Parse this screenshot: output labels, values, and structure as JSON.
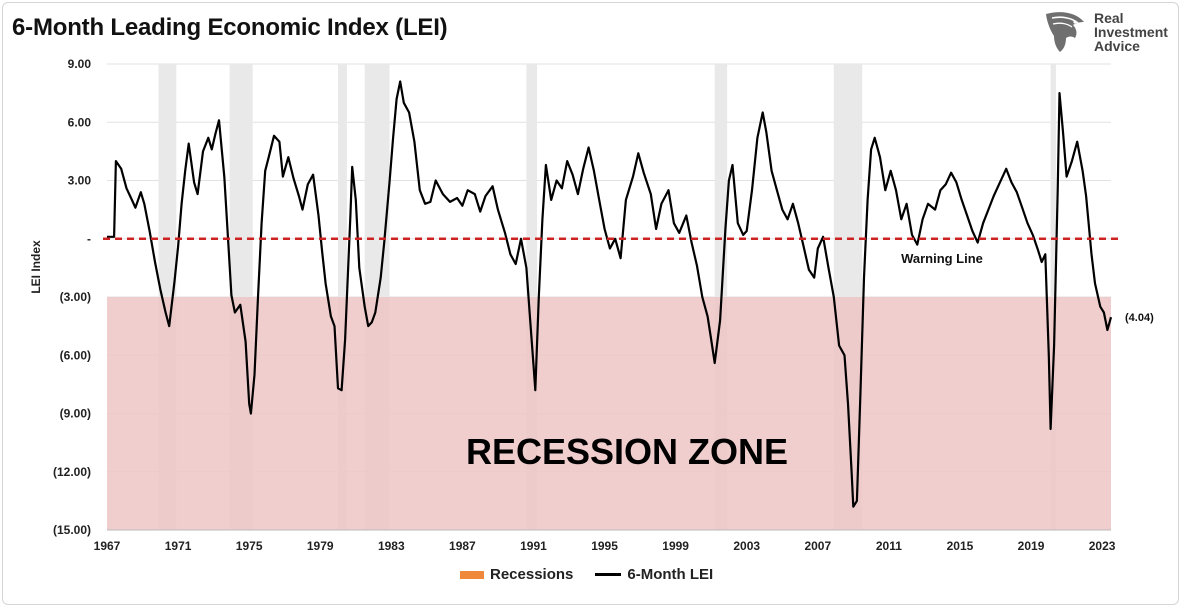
{
  "title": "6-Month Leading Economic Index (LEI)",
  "logo": {
    "lines": [
      "Real",
      "Investment",
      "Advice"
    ],
    "icon": "eagle-head-icon"
  },
  "chart_data": {
    "type": "line",
    "title": "6-Month Leading Economic Index (LEI)",
    "xlabel": "",
    "ylabel": "LEI Index",
    "xlim": [
      1967,
      2023.5
    ],
    "ylim": [
      -15,
      9
    ],
    "x_ticks": [
      "1967",
      "1971",
      "1975",
      "1979",
      "1983",
      "1987",
      "1991",
      "1995",
      "1999",
      "2003",
      "2007",
      "2011",
      "2015",
      "2019",
      "2023"
    ],
    "y_ticks": [
      {
        "value": 9,
        "label": "9.00"
      },
      {
        "value": 6,
        "label": "6.00"
      },
      {
        "value": 3,
        "label": "3.00"
      },
      {
        "value": 0,
        "label": "-"
      },
      {
        "value": -3,
        "label": "(3.00)"
      },
      {
        "value": -6,
        "label": "(6.00)"
      },
      {
        "value": -9,
        "label": "(9.00)"
      },
      {
        "value": -12,
        "label": "(12.00)"
      },
      {
        "value": -15,
        "label": "(15.00)"
      }
    ],
    "grid": "horizontal",
    "legend_position": "bottom",
    "recessions": [
      [
        1969.9,
        1970.9
      ],
      [
        1973.9,
        1975.2
      ],
      [
        1980.0,
        1980.5
      ],
      [
        1981.5,
        1982.9
      ],
      [
        1990.6,
        1991.2
      ],
      [
        2001.2,
        2001.9
      ],
      [
        2007.9,
        2009.5
      ],
      [
        2020.1,
        2020.4
      ]
    ],
    "warning_line": {
      "value": 0,
      "label": "Warning Line"
    },
    "recession_zone": {
      "range": [
        -15,
        -3
      ],
      "label": "RECESSION ZONE"
    },
    "end_label": "(4.04)",
    "colors": {
      "line": "#000000",
      "recession_band": "#e9e9e9",
      "zone": "#efc5c5",
      "warning": "#cc2222",
      "legend_recessions": "#f0883c"
    },
    "series": [
      {
        "name": "6-Month LEI",
        "points": [
          [
            1967.0,
            0.1
          ],
          [
            1967.4,
            0.1
          ],
          [
            1967.5,
            4.0
          ],
          [
            1967.8,
            3.6
          ],
          [
            1968.1,
            2.6
          ],
          [
            1968.4,
            2.0
          ],
          [
            1968.6,
            1.6
          ],
          [
            1968.9,
            2.4
          ],
          [
            1969.1,
            1.8
          ],
          [
            1969.4,
            0.4
          ],
          [
            1969.7,
            -1.2
          ],
          [
            1970.0,
            -2.6
          ],
          [
            1970.3,
            -3.8
          ],
          [
            1970.5,
            -4.5
          ],
          [
            1970.8,
            -2.2
          ],
          [
            1971.0,
            -0.4
          ],
          [
            1971.2,
            1.8
          ],
          [
            1971.4,
            3.5
          ],
          [
            1971.6,
            4.9
          ],
          [
            1971.9,
            2.9
          ],
          [
            1972.1,
            2.3
          ],
          [
            1972.4,
            4.5
          ],
          [
            1972.7,
            5.2
          ],
          [
            1972.9,
            4.6
          ],
          [
            1973.1,
            5.4
          ],
          [
            1973.3,
            6.1
          ],
          [
            1973.6,
            3.2
          ],
          [
            1973.8,
            0.2
          ],
          [
            1974.0,
            -2.9
          ],
          [
            1974.2,
            -3.8
          ],
          [
            1974.5,
            -3.4
          ],
          [
            1974.8,
            -5.3
          ],
          [
            1975.0,
            -8.5
          ],
          [
            1975.1,
            -9.0
          ],
          [
            1975.3,
            -7.0
          ],
          [
            1975.5,
            -3.0
          ],
          [
            1975.7,
            0.8
          ],
          [
            1975.9,
            3.5
          ],
          [
            1976.1,
            4.2
          ],
          [
            1976.4,
            5.3
          ],
          [
            1976.7,
            5.0
          ],
          [
            1976.9,
            3.2
          ],
          [
            1977.2,
            4.2
          ],
          [
            1977.5,
            3.1
          ],
          [
            1977.8,
            2.2
          ],
          [
            1978.0,
            1.5
          ],
          [
            1978.3,
            2.8
          ],
          [
            1978.6,
            3.3
          ],
          [
            1978.9,
            1.2
          ],
          [
            1979.1,
            -0.6
          ],
          [
            1979.3,
            -2.3
          ],
          [
            1979.6,
            -4.0
          ],
          [
            1979.8,
            -4.5
          ],
          [
            1980.0,
            -7.7
          ],
          [
            1980.2,
            -7.8
          ],
          [
            1980.4,
            -5.2
          ],
          [
            1980.7,
            1.2
          ],
          [
            1980.8,
            3.7
          ],
          [
            1981.0,
            2.0
          ],
          [
            1981.2,
            -1.5
          ],
          [
            1981.5,
            -3.5
          ],
          [
            1981.7,
            -4.5
          ],
          [
            1981.9,
            -4.3
          ],
          [
            1982.1,
            -3.8
          ],
          [
            1982.4,
            -2.0
          ],
          [
            1982.6,
            -0.2
          ],
          [
            1982.9,
            2.9
          ],
          [
            1983.1,
            5.2
          ],
          [
            1983.3,
            7.2
          ],
          [
            1983.5,
            8.1
          ],
          [
            1983.7,
            7.0
          ],
          [
            1984.0,
            6.5
          ],
          [
            1984.3,
            5.0
          ],
          [
            1984.6,
            2.5
          ],
          [
            1984.9,
            1.8
          ],
          [
            1985.2,
            1.9
          ],
          [
            1985.5,
            3.0
          ],
          [
            1985.9,
            2.3
          ],
          [
            1986.3,
            1.9
          ],
          [
            1986.7,
            2.1
          ],
          [
            1987.0,
            1.7
          ],
          [
            1987.3,
            2.5
          ],
          [
            1987.7,
            2.3
          ],
          [
            1988.0,
            1.4
          ],
          [
            1988.3,
            2.2
          ],
          [
            1988.7,
            2.7
          ],
          [
            1989.0,
            1.5
          ],
          [
            1989.4,
            0.3
          ],
          [
            1989.7,
            -0.8
          ],
          [
            1990.0,
            -1.3
          ],
          [
            1990.3,
            0.0
          ],
          [
            1990.6,
            -1.5
          ],
          [
            1990.8,
            -4.0
          ],
          [
            1991.0,
            -6.5
          ],
          [
            1991.1,
            -7.8
          ],
          [
            1991.3,
            -3.0
          ],
          [
            1991.5,
            1.0
          ],
          [
            1991.7,
            3.8
          ],
          [
            1992.0,
            2.0
          ],
          [
            1992.3,
            3.0
          ],
          [
            1992.6,
            2.6
          ],
          [
            1992.9,
            4.0
          ],
          [
            1993.2,
            3.3
          ],
          [
            1993.5,
            2.3
          ],
          [
            1993.8,
            3.6
          ],
          [
            1994.1,
            4.7
          ],
          [
            1994.4,
            3.5
          ],
          [
            1994.7,
            2.0
          ],
          [
            1995.0,
            0.5
          ],
          [
            1995.3,
            -0.5
          ],
          [
            1995.6,
            0.0
          ],
          [
            1995.9,
            -1.0
          ],
          [
            1996.2,
            2.0
          ],
          [
            1996.6,
            3.2
          ],
          [
            1996.9,
            4.4
          ],
          [
            1997.2,
            3.4
          ],
          [
            1997.6,
            2.3
          ],
          [
            1997.9,
            0.5
          ],
          [
            1998.2,
            1.8
          ],
          [
            1998.6,
            2.5
          ],
          [
            1998.9,
            0.8
          ],
          [
            1999.2,
            0.3
          ],
          [
            1999.6,
            1.2
          ],
          [
            1999.9,
            -0.2
          ],
          [
            2000.2,
            -1.4
          ],
          [
            2000.5,
            -3.0
          ],
          [
            2000.8,
            -4.0
          ],
          [
            2001.0,
            -5.2
          ],
          [
            2001.2,
            -6.4
          ],
          [
            2001.5,
            -4.2
          ],
          [
            2001.8,
            0.5
          ],
          [
            2002.0,
            3.0
          ],
          [
            2002.2,
            3.8
          ],
          [
            2002.5,
            0.8
          ],
          [
            2002.8,
            0.2
          ],
          [
            2003.0,
            0.4
          ],
          [
            2003.3,
            2.5
          ],
          [
            2003.6,
            5.2
          ],
          [
            2003.9,
            6.5
          ],
          [
            2004.1,
            5.5
          ],
          [
            2004.4,
            3.5
          ],
          [
            2004.7,
            2.5
          ],
          [
            2005.0,
            1.5
          ],
          [
            2005.3,
            1.0
          ],
          [
            2005.6,
            1.8
          ],
          [
            2005.9,
            0.8
          ],
          [
            2006.2,
            -0.4
          ],
          [
            2006.5,
            -1.6
          ],
          [
            2006.8,
            -2.0
          ],
          [
            2007.0,
            -0.5
          ],
          [
            2007.3,
            0.1
          ],
          [
            2007.6,
            -1.5
          ],
          [
            2007.9,
            -3.0
          ],
          [
            2008.2,
            -5.5
          ],
          [
            2008.5,
            -6.0
          ],
          [
            2008.7,
            -8.5
          ],
          [
            2008.9,
            -12.0
          ],
          [
            2009.0,
            -13.8
          ],
          [
            2009.2,
            -13.5
          ],
          [
            2009.4,
            -8.0
          ],
          [
            2009.6,
            -2.0
          ],
          [
            2009.8,
            2.0
          ],
          [
            2010.0,
            4.6
          ],
          [
            2010.2,
            5.2
          ],
          [
            2010.5,
            4.2
          ],
          [
            2010.8,
            2.5
          ],
          [
            2011.1,
            3.5
          ],
          [
            2011.4,
            2.5
          ],
          [
            2011.7,
            1.0
          ],
          [
            2012.0,
            1.8
          ],
          [
            2012.3,
            0.2
          ],
          [
            2012.6,
            -0.3
          ],
          [
            2012.9,
            1.0
          ],
          [
            2013.2,
            1.8
          ],
          [
            2013.6,
            1.5
          ],
          [
            2013.9,
            2.5
          ],
          [
            2014.2,
            2.8
          ],
          [
            2014.5,
            3.4
          ],
          [
            2014.8,
            2.9
          ],
          [
            2015.1,
            2.0
          ],
          [
            2015.4,
            1.2
          ],
          [
            2015.7,
            0.4
          ],
          [
            2016.0,
            -0.2
          ],
          [
            2016.3,
            0.8
          ],
          [
            2016.6,
            1.5
          ],
          [
            2016.9,
            2.2
          ],
          [
            2017.2,
            2.8
          ],
          [
            2017.6,
            3.6
          ],
          [
            2017.9,
            2.9
          ],
          [
            2018.2,
            2.4
          ],
          [
            2018.5,
            1.6
          ],
          [
            2018.8,
            0.8
          ],
          [
            2019.1,
            0.2
          ],
          [
            2019.4,
            -0.6
          ],
          [
            2019.6,
            -1.2
          ],
          [
            2019.8,
            -0.8
          ],
          [
            2020.0,
            -6.0
          ],
          [
            2020.1,
            -9.8
          ],
          [
            2020.3,
            -5.5
          ],
          [
            2020.5,
            2.5
          ],
          [
            2020.6,
            7.5
          ],
          [
            2020.8,
            5.5
          ],
          [
            2021.0,
            3.2
          ],
          [
            2021.3,
            4.0
          ],
          [
            2021.6,
            5.0
          ],
          [
            2021.9,
            3.5
          ],
          [
            2022.1,
            2.2
          ],
          [
            2022.4,
            -0.8
          ],
          [
            2022.6,
            -2.3
          ],
          [
            2022.9,
            -3.5
          ],
          [
            2023.1,
            -3.8
          ],
          [
            2023.3,
            -4.7
          ],
          [
            2023.5,
            -4.04
          ]
        ]
      }
    ],
    "legend": [
      {
        "name": "Recessions",
        "color": "#f0883c"
      },
      {
        "name": "6-Month LEI",
        "color": "#000000"
      }
    ]
  }
}
